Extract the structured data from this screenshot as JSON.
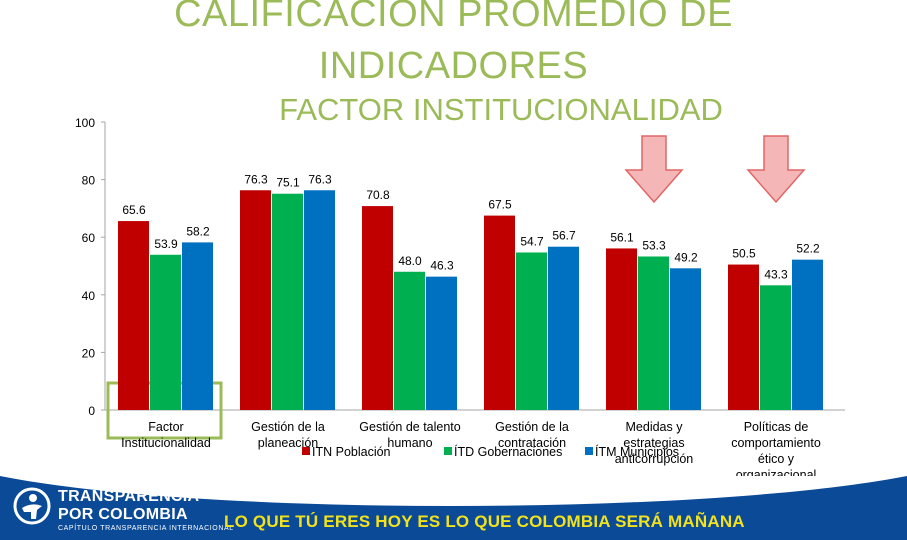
{
  "header": {
    "title_line1": "CALIFICACIÓN PROMEDIO DE",
    "title_line2": "INDICADORES",
    "subtitle": "FACTOR INSTITUCIONALIDAD"
  },
  "chart_data": {
    "type": "bar",
    "title": "CALIFICACIÓN PROMEDIO DE INDICADORES",
    "subtitle": "FACTOR INSTITUCIONALIDAD",
    "categories": [
      [
        "Factor",
        "Institucionalidad"
      ],
      [
        "Gestión de la",
        "planeación"
      ],
      [
        "Gestión de talento",
        "humano"
      ],
      [
        "Gestión de la",
        "contratación"
      ],
      [
        "Medidas y",
        "estrategias",
        "anticorrupción"
      ],
      [
        "Políticas de",
        "comportamiento",
        "ético y",
        "organizacional"
      ]
    ],
    "series": [
      {
        "name": "ITN Población",
        "color": "#c00000",
        "values": [
          65.6,
          76.3,
          70.8,
          67.5,
          56.1,
          50.5
        ]
      },
      {
        "name": "ÍTD Gobernaciones",
        "color": "#00b050",
        "values": [
          53.9,
          75.1,
          48.0,
          54.7,
          53.3,
          43.3
        ]
      },
      {
        "name": "ÍTM Municipios",
        "color": "#0070c0",
        "values": [
          58.2,
          76.3,
          46.3,
          56.7,
          49.2,
          52.2
        ]
      }
    ],
    "value_labels": [
      [
        "65.6",
        "53.9",
        "58.2"
      ],
      [
        "76.3",
        "75.1",
        "76.3"
      ],
      [
        "70.8",
        "48.0",
        "46.3"
      ],
      [
        "67.5",
        "54.7",
        "56.7"
      ],
      [
        "56.1",
        "53.3",
        "49.2"
      ],
      [
        "50.5",
        "43.3",
        "52.2"
      ]
    ],
    "y_ticks": [
      "0",
      "20",
      "40",
      "60",
      "80",
      "100"
    ],
    "ylim": [
      0,
      100
    ],
    "grid": false,
    "legend_position": "bottom",
    "highlight_category_index": 0,
    "highlight_color": "#9bbb59",
    "arrow_category_indices": [
      4,
      5
    ],
    "arrow_color": "#f4b6b6"
  },
  "footer": {
    "background": "#0a4a97",
    "brand_line1": "TRANSPARENCIA",
    "brand_line2": "POR COLOMBIA",
    "brand_line3": "CAPÍTULO TRANSPARENCIA INTERNACIONAL",
    "slogan": "LO QUE TÚ ERES HOY ES LO QUE COLOMBIA SERÁ MAÑANA",
    "slogan_color": "#f2e21b"
  }
}
